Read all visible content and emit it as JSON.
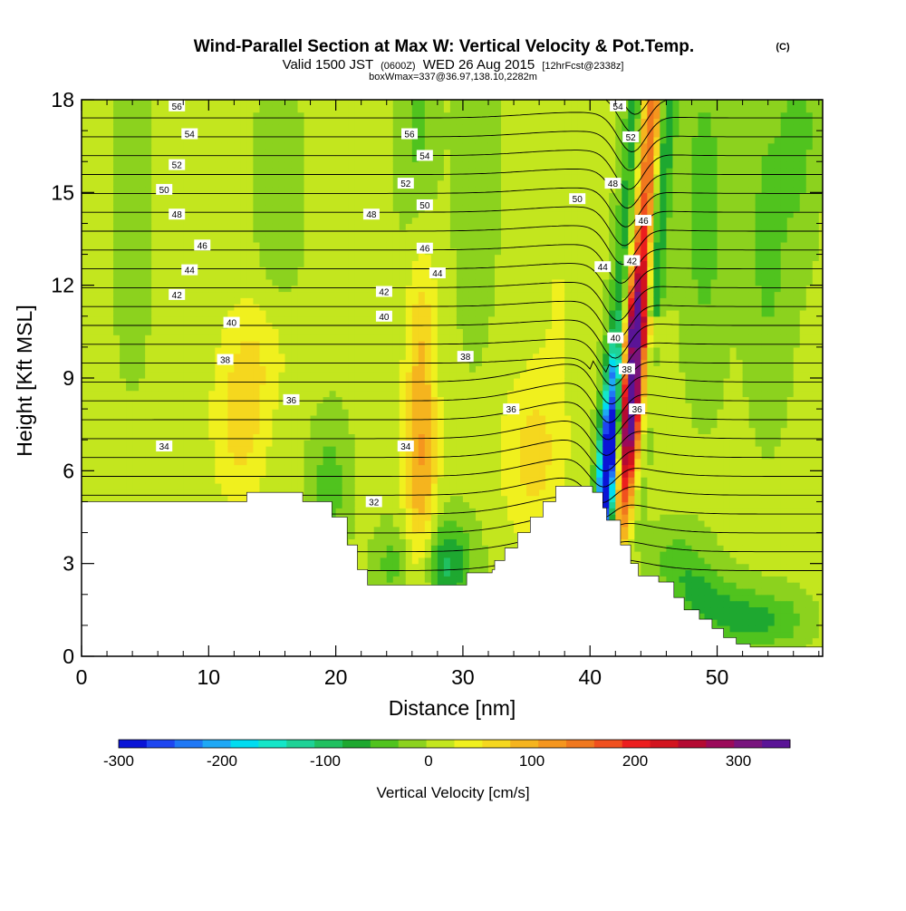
{
  "chart_data": {
    "type": "heatmap",
    "title": "Wind-Parallel Section at Max W: Vertical Velocity & Pot.Temp.",
    "title_mark": "(C)",
    "subtitle_parts": [
      "Valid 1500 JST",
      "(0600Z)",
      "WED 26 Aug 2015",
      "[12hrFcst@2338z]"
    ],
    "subtitle2": "boxWmax=337@36.97,138.10,2282m",
    "xlabel": "Distance [nm]",
    "ylabel": "Height [Kft MSL]",
    "xlim": [
      0,
      58.3
    ],
    "ylim": [
      0,
      18
    ],
    "xticks": [
      0,
      10,
      20,
      30,
      40,
      50
    ],
    "yticks": [
      0,
      3,
      6,
      9,
      12,
      15,
      18
    ],
    "colorbar": {
      "label": "Vertical Velocity [cm/s]",
      "range": [
        -300,
        350
      ],
      "step": 25,
      "ticks": [
        -300,
        -200,
        -100,
        0,
        100,
        200,
        300
      ],
      "colors": [
        "#0a14d6",
        "#1e46f0",
        "#1f78f5",
        "#1ea8f5",
        "#00dcf0",
        "#14e6c8",
        "#1ed296",
        "#20c060",
        "#1ea830",
        "#50c31e",
        "#8cd21e",
        "#c3e61e",
        "#f0f01e",
        "#f5d71e",
        "#f5b41e",
        "#f5961e",
        "#f0781e",
        "#f0501e",
        "#ec1e1e",
        "#d2141e",
        "#b40a32",
        "#9b0a5a",
        "#78147d",
        "#5a1496"
      ]
    },
    "terrain_kft": [
      [
        0,
        5.0
      ],
      [
        13,
        5.0
      ],
      [
        13,
        5.3
      ],
      [
        17.4,
        5.3
      ],
      [
        17.4,
        5.0
      ],
      [
        19.7,
        5.0
      ],
      [
        19.7,
        4.5
      ],
      [
        20.9,
        4.5
      ],
      [
        20.9,
        3.6
      ],
      [
        21.7,
        3.6
      ],
      [
        21.7,
        2.8
      ],
      [
        22.5,
        2.8
      ],
      [
        22.5,
        2.3
      ],
      [
        30.3,
        2.3
      ],
      [
        30.3,
        2.7
      ],
      [
        32.3,
        2.7
      ],
      [
        32.3,
        2.8
      ],
      [
        32.5,
        2.8
      ],
      [
        32.5,
        3.1
      ],
      [
        33.3,
        3.1
      ],
      [
        33.3,
        3.5
      ],
      [
        34.3,
        3.5
      ],
      [
        34.3,
        4.0
      ],
      [
        35.3,
        4.0
      ],
      [
        35.3,
        4.5
      ],
      [
        36.3,
        4.5
      ],
      [
        36.3,
        5.0
      ],
      [
        37.3,
        5.0
      ],
      [
        37.3,
        5.5
      ],
      [
        38.3,
        5.5
      ],
      [
        38.3,
        5.5
      ],
      [
        40.2,
        5.5
      ],
      [
        40.2,
        5.3
      ],
      [
        41.0,
        5.3
      ],
      [
        41.0,
        4.8
      ],
      [
        41.3,
        4.8
      ],
      [
        41.3,
        4.4
      ],
      [
        42.4,
        4.4
      ],
      [
        42.4,
        3.6
      ],
      [
        43.2,
        3.6
      ],
      [
        43.2,
        3.0
      ],
      [
        43.8,
        3.0
      ],
      [
        43.8,
        2.6
      ],
      [
        45.4,
        2.6
      ],
      [
        45.4,
        2.4
      ],
      [
        46.6,
        2.4
      ],
      [
        46.6,
        1.9
      ],
      [
        47.4,
        1.9
      ],
      [
        47.4,
        1.5
      ],
      [
        48.6,
        1.5
      ],
      [
        48.6,
        1.2
      ],
      [
        49.6,
        1.2
      ],
      [
        49.6,
        0.9
      ],
      [
        50.5,
        0.9
      ],
      [
        50.5,
        0.6
      ],
      [
        51.5,
        0.6
      ],
      [
        51.5,
        0.4
      ],
      [
        52.6,
        0.4
      ],
      [
        52.6,
        0.3
      ],
      [
        58.3,
        0.3
      ]
    ],
    "updraft_bands": [
      {
        "x": 4,
        "z": 14.5,
        "sx": 1.0,
        "sz": 3.5,
        "w": -22
      },
      {
        "x": 15.5,
        "z": 14,
        "sx": 1.2,
        "sz": 3.5,
        "w": -25
      },
      {
        "x": 26.5,
        "z": 16.5,
        "sx": 1.0,
        "sz": 3.5,
        "w": -45
      },
      {
        "x": 31,
        "z": 15.5,
        "sx": 1.0,
        "sz": 3.5,
        "w": -30
      },
      {
        "x": 49,
        "z": 14.5,
        "sx": 1.2,
        "sz": 3.5,
        "w": -45
      },
      {
        "x": 54,
        "z": 13.5,
        "sx": 1.2,
        "sz": 3.5,
        "w": -40
      },
      {
        "x": 56.5,
        "z": 17,
        "sx": 1.0,
        "sz": 2.5,
        "w": -40
      },
      {
        "x": 19.5,
        "z": 5.5,
        "sx": 1.0,
        "sz": 1.5,
        "w": -45
      },
      {
        "x": 28.5,
        "z": 3.0,
        "sx": 1.5,
        "sz": 1.0,
        "w": -90
      },
      {
        "x": 24.5,
        "z": 3.0,
        "sx": 1.0,
        "sz": 0.8,
        "w": -40
      },
      {
        "x": 47.0,
        "z": 3.0,
        "sx": 1.5,
        "sz": 0.8,
        "w": -45
      },
      {
        "x": 49.0,
        "z": 1.8,
        "sx": 1.5,
        "sz": 0.7,
        "w": -60
      },
      {
        "x": 52.0,
        "z": 1.2,
        "sx": 1.5,
        "sz": 0.7,
        "w": -60
      },
      {
        "x": 55.0,
        "z": 1.2,
        "sx": 1.5,
        "sz": 0.6,
        "w": -45
      },
      {
        "x": 26.7,
        "z": 6.5,
        "sx": 0.9,
        "sz": 4.0,
        "w": 95
      },
      {
        "x": 26.7,
        "z": 12.5,
        "sx": 0.9,
        "sz": 2.5,
        "w": 25
      },
      {
        "x": 12.5,
        "z": 7.5,
        "sx": 1.6,
        "sz": 2.0,
        "w": 55
      },
      {
        "x": 14.5,
        "z": 10,
        "sx": 2.0,
        "sz": 1.5,
        "w": 35
      },
      {
        "x": 35.5,
        "z": 6.5,
        "sx": 1.8,
        "sz": 2.0,
        "w": 55
      },
      {
        "x": 37.5,
        "z": 12,
        "sx": 1.2,
        "sz": 3.0,
        "w": 20
      }
    ],
    "isentrope_labels": [
      {
        "x": 7.5,
        "z": 17.8,
        "label": "56"
      },
      {
        "x": 8.5,
        "z": 16.9,
        "label": "54"
      },
      {
        "x": 7.5,
        "z": 15.9,
        "label": "52"
      },
      {
        "x": 6.5,
        "z": 15.1,
        "label": "50"
      },
      {
        "x": 7.5,
        "z": 14.3,
        "label": "48"
      },
      {
        "x": 9.5,
        "z": 13.3,
        "label": "46"
      },
      {
        "x": 8.5,
        "z": 12.5,
        "label": "44"
      },
      {
        "x": 7.5,
        "z": 11.7,
        "label": "42"
      },
      {
        "x": 11.8,
        "z": 10.8,
        "label": "40"
      },
      {
        "x": 11.3,
        "z": 9.6,
        "label": "38"
      },
      {
        "x": 16.5,
        "z": 8.3,
        "label": "36"
      },
      {
        "x": 6.5,
        "z": 6.8,
        "label": "34"
      },
      {
        "x": 23.0,
        "z": 5.0,
        "label": "32"
      },
      {
        "x": 25.8,
        "z": 16.9,
        "label": "56"
      },
      {
        "x": 27.0,
        "z": 16.2,
        "label": "54"
      },
      {
        "x": 25.5,
        "z": 15.3,
        "label": "52"
      },
      {
        "x": 27.0,
        "z": 14.6,
        "label": "50"
      },
      {
        "x": 22.8,
        "z": 14.3,
        "label": "48"
      },
      {
        "x": 27.0,
        "z": 13.2,
        "label": "46"
      },
      {
        "x": 28.0,
        "z": 12.4,
        "label": "44"
      },
      {
        "x": 23.8,
        "z": 11.8,
        "label": "42"
      },
      {
        "x": 23.8,
        "z": 11.0,
        "label": "40"
      },
      {
        "x": 30.2,
        "z": 9.7,
        "label": "38"
      },
      {
        "x": 33.8,
        "z": 8.0,
        "label": "36"
      },
      {
        "x": 25.5,
        "z": 6.8,
        "label": "34"
      },
      {
        "x": 42.2,
        "z": 17.8,
        "label": "54"
      },
      {
        "x": 43.2,
        "z": 16.8,
        "label": "52"
      },
      {
        "x": 39.0,
        "z": 14.8,
        "label": "50"
      },
      {
        "x": 41.8,
        "z": 15.3,
        "label": "48"
      },
      {
        "x": 44.2,
        "z": 14.1,
        "label": "46"
      },
      {
        "x": 41.0,
        "z": 12.6,
        "label": "44"
      },
      {
        "x": 43.3,
        "z": 12.8,
        "label": "42"
      },
      {
        "x": 42.0,
        "z": 10.3,
        "label": "40"
      },
      {
        "x": 42.9,
        "z": 9.3,
        "label": "38"
      },
      {
        "x": 43.7,
        "z": 8.0,
        "label": "36"
      }
    ]
  }
}
